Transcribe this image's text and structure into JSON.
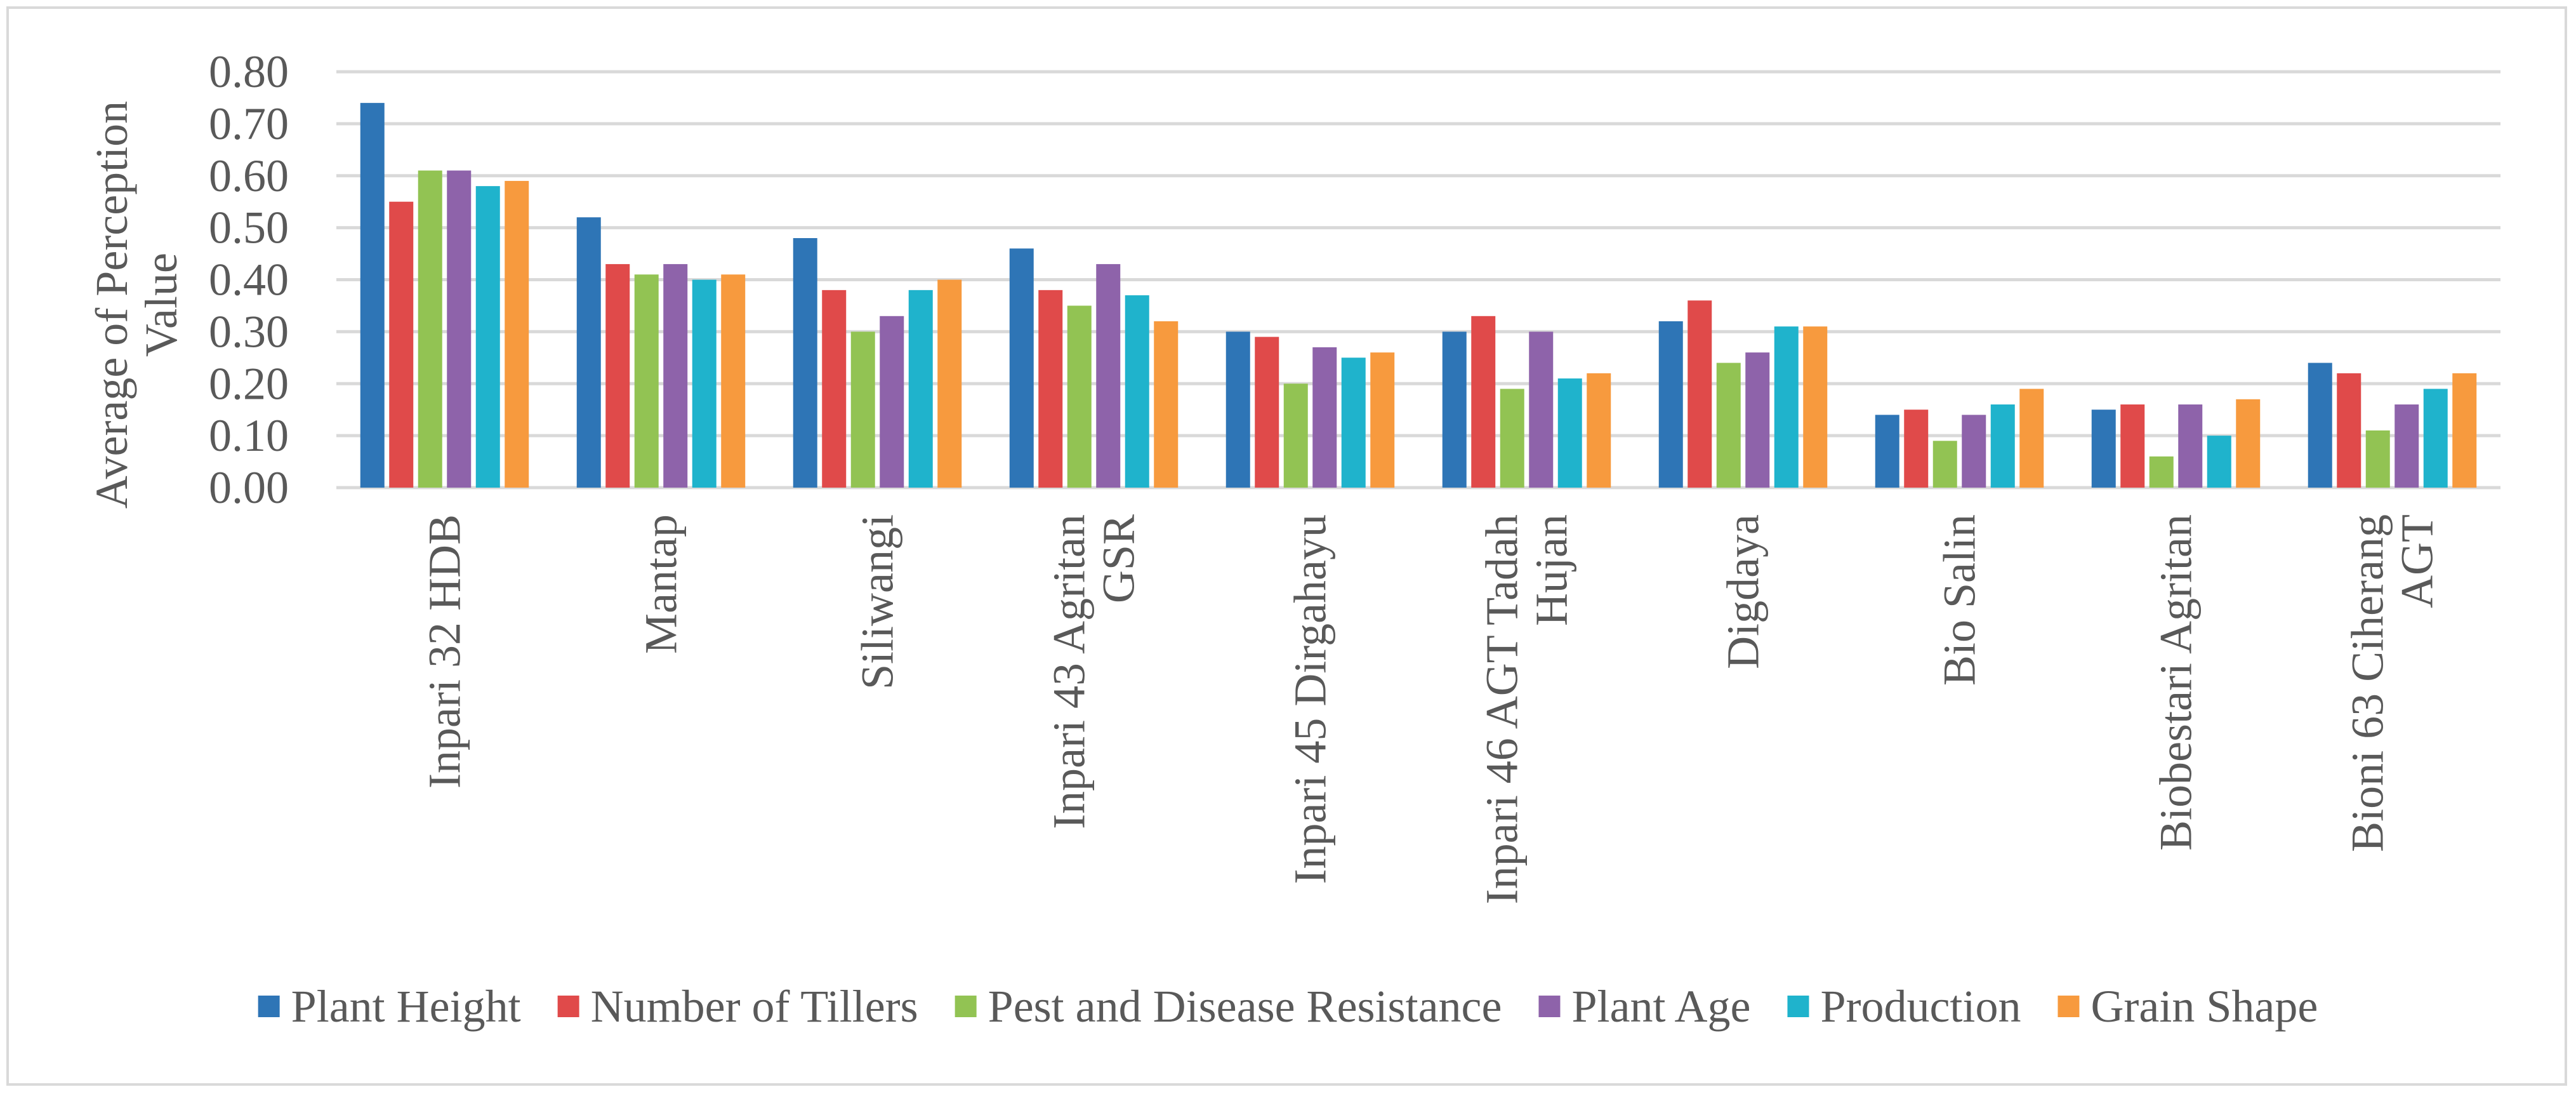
{
  "chart_data": {
    "type": "bar",
    "title": "",
    "xlabel": "",
    "ylabel": "Average of Perception Value",
    "ylim": [
      0,
      0.8
    ],
    "yticks": [
      "0.00",
      "0.10",
      "0.20",
      "0.30",
      "0.40",
      "0.50",
      "0.60",
      "0.70",
      "0.80"
    ],
    "grid": true,
    "legend_position": "bottom",
    "categories": [
      [
        "Inpari 32 HDB"
      ],
      [
        "Mantap"
      ],
      [
        "Siliwangi"
      ],
      [
        "Inpari 43 Agritan",
        "GSR"
      ],
      [
        "Inpari 45 Dirgahayu"
      ],
      [
        "Inpari 46 AGT Tadah",
        "Hujan"
      ],
      [
        "Digdaya"
      ],
      [
        "Bio Salin"
      ],
      [
        "Biobestari Agritan"
      ],
      [
        "Bioni 63 Ciherang",
        "AGT"
      ]
    ],
    "series": [
      {
        "name": "Plant Height",
        "color": "#2e75b6",
        "values": [
          0.74,
          0.52,
          0.48,
          0.46,
          0.3,
          0.3,
          0.32,
          0.14,
          0.15,
          0.24
        ]
      },
      {
        "name": "Number of Tillers",
        "color": "#e04a4a",
        "values": [
          0.55,
          0.43,
          0.38,
          0.38,
          0.29,
          0.33,
          0.36,
          0.15,
          0.16,
          0.22
        ]
      },
      {
        "name": "Pest and Disease Resistance",
        "color": "#92c353",
        "values": [
          0.61,
          0.41,
          0.3,
          0.35,
          0.2,
          0.19,
          0.24,
          0.09,
          0.06,
          0.11
        ]
      },
      {
        "name": "Plant Age",
        "color": "#8e63aa",
        "values": [
          0.61,
          0.43,
          0.33,
          0.43,
          0.27,
          0.3,
          0.26,
          0.14,
          0.16,
          0.16
        ]
      },
      {
        "name": "Production",
        "color": "#1fb3cc",
        "values": [
          0.58,
          0.4,
          0.38,
          0.37,
          0.25,
          0.21,
          0.31,
          0.16,
          0.1,
          0.19
        ]
      },
      {
        "name": "Grain Shape",
        "color": "#f79a3e",
        "values": [
          0.59,
          0.41,
          0.4,
          0.32,
          0.26,
          0.22,
          0.31,
          0.19,
          0.17,
          0.22
        ]
      }
    ]
  },
  "colors": {
    "gridline": "#d9d9d9",
    "text": "#595959",
    "frame": "#d9d9d9"
  }
}
